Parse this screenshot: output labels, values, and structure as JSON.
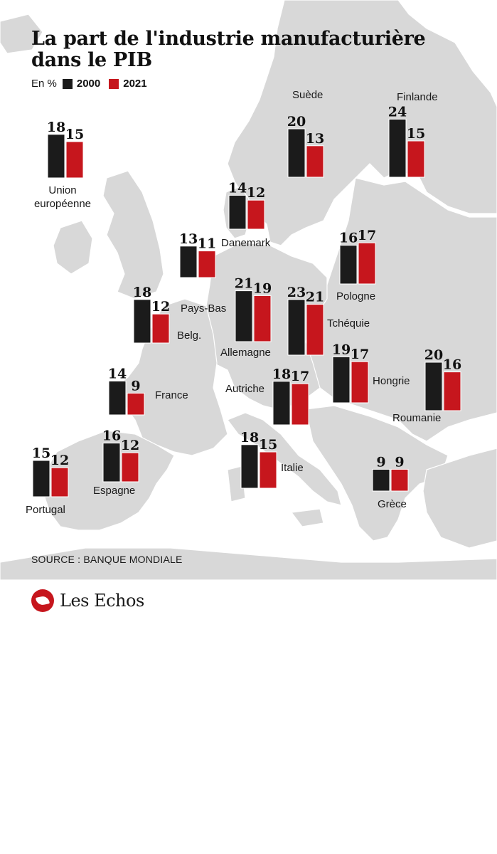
{
  "title": "La part de l'industrie manufacturière dans le PIB",
  "legend": {
    "unit": "En %",
    "series": [
      {
        "label": "2000",
        "color": "#1b1b1b"
      },
      {
        "label": "2021",
        "color": "#c6161d"
      }
    ]
  },
  "colors": {
    "land": "#d8d8d8",
    "sea": "#ffffff",
    "bar_2000": "#1b1b1b",
    "bar_2021": "#c6161d"
  },
  "chart_data": {
    "type": "bar",
    "title": "La part de l'industrie manufacturière dans le PIB",
    "ylabel": "En %",
    "series": [
      {
        "name": "2000",
        "values": [
          18,
          20,
          24,
          14,
          16,
          13,
          18,
          21,
          23,
          14,
          18,
          19,
          20,
          15,
          16,
          18,
          9
        ]
      },
      {
        "name": "2021",
        "values": [
          15,
          13,
          15,
          12,
          17,
          11,
          12,
          19,
          21,
          9,
          17,
          17,
          16,
          12,
          12,
          15,
          9
        ]
      }
    ],
    "categories": [
      "Union européenne",
      "Suède",
      "Finlande",
      "Danemark",
      "Pologne",
      "Pays-Bas",
      "Belg.",
      "Allemagne",
      "Tchéquie",
      "France",
      "Autriche",
      "Hongrie",
      "Roumanie",
      "Portugal",
      "Espagne",
      "Italie",
      "Grèce"
    ]
  },
  "source": "SOURCE : BANQUE MONDIALE",
  "brand": "Les Echos"
}
